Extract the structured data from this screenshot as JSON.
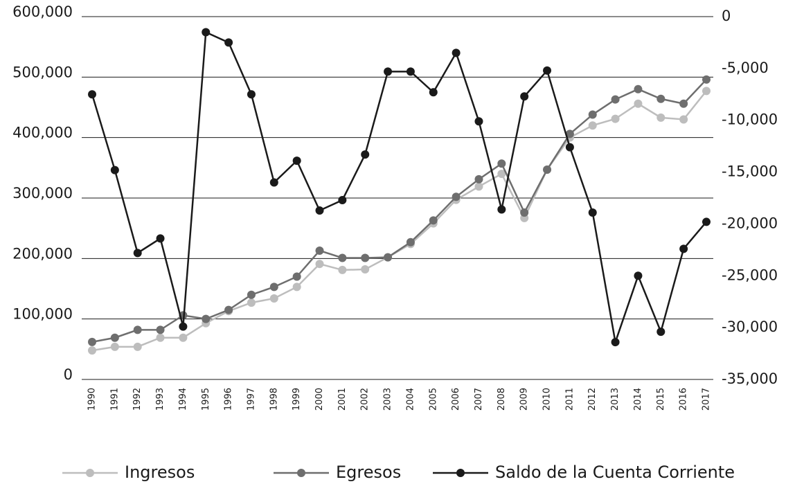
{
  "chart_data": {
    "type": "line",
    "categories": [
      "1990",
      "1991",
      "1992",
      "1993",
      "1994",
      "1995",
      "1996",
      "1997",
      "1998",
      "1999",
      "2000",
      "2001",
      "2002",
      "2003",
      "2004",
      "2005",
      "2006",
      "2007",
      "2008",
      "2009",
      "2010",
      "2011",
      "2012",
      "2013",
      "2014",
      "2015",
      "2016",
      "2017"
    ],
    "series": [
      {
        "name": "Ingresos",
        "color": "#bdbdbd",
        "values": [
          48000,
          54000,
          54000,
          69000,
          69000,
          93000,
          113000,
          127000,
          134000,
          153000,
          191000,
          181000,
          182000,
          202000,
          224000,
          258000,
          297000,
          319000,
          340000,
          267000,
          347000,
          400000,
          420000,
          431000,
          456000,
          433000,
          430000,
          477000
        ]
      },
      {
        "name": "Egresos",
        "color": "#6e6e6e",
        "values": [
          62000,
          69000,
          82000,
          82000,
          106000,
          100000,
          115000,
          140000,
          153000,
          170000,
          213000,
          201000,
          201000,
          202000,
          227000,
          263000,
          302000,
          331000,
          357000,
          276000,
          347000,
          406000,
          438000,
          463000,
          480000,
          464000,
          456000,
          496000
        ]
      },
      {
        "name": "Saldo de la Cuenta Corriente",
        "color": "#1a1a1a",
        "axis": "y2",
        "values": [
          -7500,
          -14800,
          -22800,
          -21400,
          -29900,
          -1500,
          -2500,
          -7500,
          -16000,
          -13900,
          -18700,
          -17700,
          -13300,
          -5300,
          -5300,
          -7300,
          -3500,
          -10100,
          -18600,
          -7700,
          -5200,
          -12600,
          -18900,
          -31400,
          -25000,
          -30400,
          -22400,
          -19800
        ]
      }
    ],
    "ylim": [
      0,
      600000
    ],
    "yticks": [
      0,
      {
        "value": 100000,
        "label": "100,000"
      },
      {
        "value": 200000,
        "label": "200,000"
      },
      {
        "value": 300000,
        "label": "300,000"
      },
      {
        "value": 400000,
        "label": "400,000"
      },
      {
        "value": 500000,
        "label": "500,000"
      },
      {
        "value": 600000,
        "label": "600,000"
      }
    ],
    "y2lim": [
      -35000,
      0
    ],
    "y2ticks": [
      {
        "value": -35000,
        "label": "-35,000"
      },
      {
        "value": -30000,
        "label": "-30,000"
      },
      {
        "value": -25000,
        "label": "-25,000"
      },
      {
        "value": -20000,
        "label": "-20,000"
      },
      {
        "value": -15000,
        "label": "-15,000"
      },
      {
        "value": -10000,
        "label": "-10,000"
      },
      {
        "value": -5000,
        "label": "-5,000"
      },
      0
    ],
    "grid": true
  }
}
